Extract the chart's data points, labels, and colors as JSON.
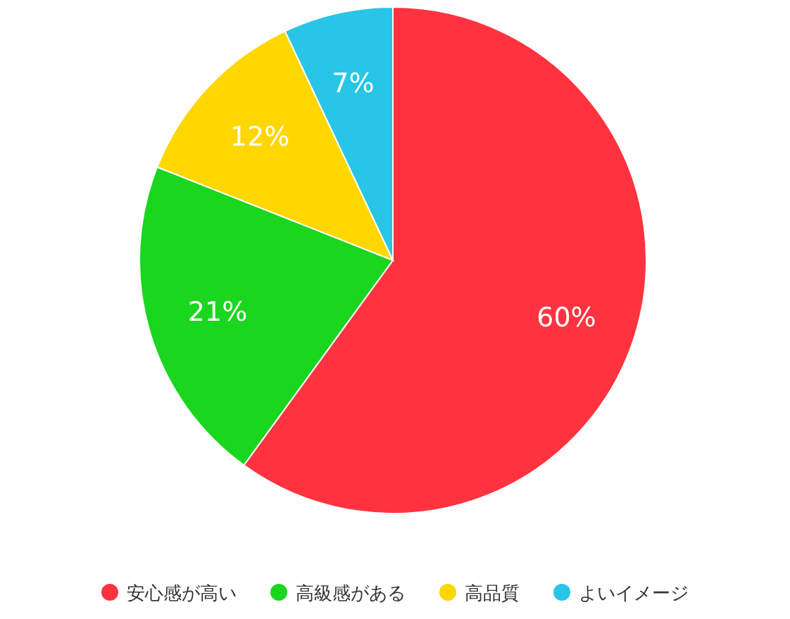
{
  "chart_data": {
    "type": "pie",
    "categories": [
      "安心感が高い",
      "高級感がある",
      "高品質",
      "よいイメージ"
    ],
    "values": [
      60,
      21,
      12,
      7
    ],
    "colors": [
      "#ff333f",
      "#1ad61e",
      "#ffd700",
      "#29c5e6"
    ],
    "value_labels": [
      "60%",
      "21%",
      "12%",
      "7%"
    ],
    "legend": "bottom"
  }
}
